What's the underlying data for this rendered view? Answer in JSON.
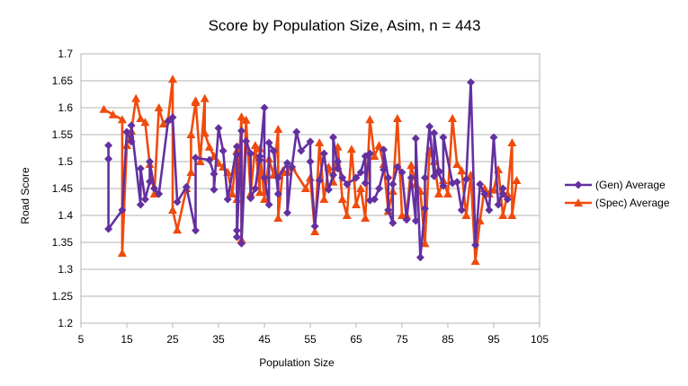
{
  "chart_data": {
    "type": "line",
    "title": "Score by Population Size, Asim, n = 443",
    "xlabel": "Population Size",
    "ylabel": "Road Score",
    "xlim": [
      5,
      105
    ],
    "ylim": [
      1.2,
      1.7
    ],
    "x_ticks": [
      "5",
      "15",
      "25",
      "35",
      "45",
      "55",
      "65",
      "75",
      "85",
      "95",
      "105"
    ],
    "y_ticks": [
      "1.2",
      "1.25",
      "1.3",
      "1.35",
      "1.4",
      "1.45",
      "1.5",
      "1.55",
      "1.6",
      "1.65",
      "1.7"
    ],
    "grid": "horizontal",
    "legend_position": "right",
    "series": [
      {
        "name": "(Gen) Average",
        "color": "#6330a0",
        "marker": "diamond",
        "points": [
          [
            11,
            1.53
          ],
          [
            11,
            1.505
          ],
          [
            11,
            1.375
          ],
          [
            14,
            1.41
          ],
          [
            15,
            1.555
          ],
          [
            16,
            1.537
          ],
          [
            16,
            1.567
          ],
          [
            18,
            1.42
          ],
          [
            18,
            1.487
          ],
          [
            19,
            1.43
          ],
          [
            20,
            1.463
          ],
          [
            20,
            1.5
          ],
          [
            21,
            1.45
          ],
          [
            22,
            1.44
          ],
          [
            24,
            1.575
          ],
          [
            25,
            1.582
          ],
          [
            26,
            1.425
          ],
          [
            28,
            1.453
          ],
          [
            30,
            1.372
          ],
          [
            30,
            1.507
          ],
          [
            33,
            1.503
          ],
          [
            34,
            1.477
          ],
          [
            34,
            1.448
          ],
          [
            35,
            1.562
          ],
          [
            36,
            1.52
          ],
          [
            37,
            1.43
          ],
          [
            39,
            1.528
          ],
          [
            39,
            1.513
          ],
          [
            39,
            1.372
          ],
          [
            39,
            1.36
          ],
          [
            40,
            1.557
          ],
          [
            40,
            1.348
          ],
          [
            41,
            1.538
          ],
          [
            42,
            1.515
          ],
          [
            42,
            1.432
          ],
          [
            43,
            1.45
          ],
          [
            44,
            1.51
          ],
          [
            44,
            1.503
          ],
          [
            45,
            1.6
          ],
          [
            45,
            1.47
          ],
          [
            46,
            1.42
          ],
          [
            46,
            1.535
          ],
          [
            47,
            1.52
          ],
          [
            48,
            1.44
          ],
          [
            48,
            1.47
          ],
          [
            50,
            1.497
          ],
          [
            50,
            1.405
          ],
          [
            51,
            1.49
          ],
          [
            52,
            1.555
          ],
          [
            53,
            1.52
          ],
          [
            55,
            1.537
          ],
          [
            55,
            1.5
          ],
          [
            56,
            1.38
          ],
          [
            57,
            1.465
          ],
          [
            58,
            1.515
          ],
          [
            59,
            1.448
          ],
          [
            60,
            1.475
          ],
          [
            60,
            1.545
          ],
          [
            61,
            1.487
          ],
          [
            61,
            1.5
          ],
          [
            62,
            1.47
          ],
          [
            63,
            1.458
          ],
          [
            65,
            1.47
          ],
          [
            66,
            1.48
          ],
          [
            67,
            1.51
          ],
          [
            67,
            1.46
          ],
          [
            68,
            1.515
          ],
          [
            68,
            1.428
          ],
          [
            69,
            1.43
          ],
          [
            70,
            1.45
          ],
          [
            71,
            1.485
          ],
          [
            71,
            1.522
          ],
          [
            72,
            1.47
          ],
          [
            72,
            1.41
          ],
          [
            73,
            1.386
          ],
          [
            73,
            1.458
          ],
          [
            74,
            1.49
          ],
          [
            75,
            1.48
          ],
          [
            76,
            1.392
          ],
          [
            77,
            1.47
          ],
          [
            78,
            1.39
          ],
          [
            78,
            1.543
          ],
          [
            79,
            1.322
          ],
          [
            80,
            1.413
          ],
          [
            80,
            1.47
          ],
          [
            81,
            1.565
          ],
          [
            82,
            1.473
          ],
          [
            82,
            1.553
          ],
          [
            83,
            1.483
          ],
          [
            83,
            1.48
          ],
          [
            84,
            1.455
          ],
          [
            84,
            1.545
          ],
          [
            86,
            1.46
          ],
          [
            87,
            1.462
          ],
          [
            88,
            1.41
          ],
          [
            89,
            1.467
          ],
          [
            90,
            1.647
          ],
          [
            91,
            1.345
          ],
          [
            92,
            1.458
          ],
          [
            93,
            1.44
          ],
          [
            94,
            1.41
          ],
          [
            95,
            1.545
          ],
          [
            96,
            1.42
          ],
          [
            97,
            1.45
          ],
          [
            97,
            1.44
          ],
          [
            98,
            1.43
          ]
        ]
      },
      {
        "name": "(Spec) Average",
        "color": "#f04b0c",
        "marker": "triangle",
        "points": [
          [
            10,
            1.597
          ],
          [
            12,
            1.587
          ],
          [
            14,
            1.578
          ],
          [
            14,
            1.33
          ],
          [
            15,
            1.53
          ],
          [
            16,
            1.557
          ],
          [
            17,
            1.617
          ],
          [
            18,
            1.58
          ],
          [
            19,
            1.573
          ],
          [
            20,
            1.495
          ],
          [
            21,
            1.44
          ],
          [
            22,
            1.6
          ],
          [
            23,
            1.57
          ],
          [
            24,
            1.578
          ],
          [
            25,
            1.653
          ],
          [
            25,
            1.41
          ],
          [
            26,
            1.373
          ],
          [
            28,
            1.45
          ],
          [
            29,
            1.48
          ],
          [
            29,
            1.55
          ],
          [
            30,
            1.61
          ],
          [
            30,
            1.613
          ],
          [
            31,
            1.5
          ],
          [
            32,
            1.617
          ],
          [
            32,
            1.553
          ],
          [
            33,
            1.527
          ],
          [
            34,
            1.51
          ],
          [
            35,
            1.497
          ],
          [
            36,
            1.49
          ],
          [
            37,
            1.48
          ],
          [
            38,
            1.44
          ],
          [
            39,
            1.52
          ],
          [
            39,
            1.43
          ],
          [
            40,
            1.583
          ],
          [
            40,
            1.355
          ],
          [
            41,
            1.577
          ],
          [
            42,
            1.44
          ],
          [
            43,
            1.53
          ],
          [
            44,
            1.443
          ],
          [
            44,
            1.524
          ],
          [
            45,
            1.43
          ],
          [
            46,
            1.505
          ],
          [
            47,
            1.475
          ],
          [
            48,
            1.56
          ],
          [
            48,
            1.395
          ],
          [
            49,
            1.483
          ],
          [
            50,
            1.48
          ],
          [
            51,
            1.49
          ],
          [
            54,
            1.45
          ],
          [
            55,
            1.47
          ],
          [
            56,
            1.37
          ],
          [
            57,
            1.535
          ],
          [
            58,
            1.43
          ],
          [
            59,
            1.49
          ],
          [
            60,
            1.462
          ],
          [
            61,
            1.527
          ],
          [
            62,
            1.43
          ],
          [
            63,
            1.4
          ],
          [
            64,
            1.523
          ],
          [
            65,
            1.42
          ],
          [
            66,
            1.45
          ],
          [
            67,
            1.395
          ],
          [
            68,
            1.578
          ],
          [
            69,
            1.51
          ],
          [
            70,
            1.53
          ],
          [
            71,
            1.495
          ],
          [
            72,
            1.408
          ],
          [
            73,
            1.445
          ],
          [
            74,
            1.58
          ],
          [
            75,
            1.4
          ],
          [
            76,
            1.4
          ],
          [
            77,
            1.493
          ],
          [
            78,
            1.458
          ],
          [
            79,
            1.445
          ],
          [
            80,
            1.348
          ],
          [
            81,
            1.52
          ],
          [
            82,
            1.5
          ],
          [
            83,
            1.44
          ],
          [
            84,
            1.465
          ],
          [
            85,
            1.44
          ],
          [
            86,
            1.58
          ],
          [
            87,
            1.495
          ],
          [
            88,
            1.483
          ],
          [
            89,
            1.4
          ],
          [
            90,
            1.475
          ],
          [
            91,
            1.315
          ],
          [
            92,
            1.39
          ],
          [
            93,
            1.45
          ],
          [
            94,
            1.44
          ],
          [
            95,
            1.447
          ],
          [
            96,
            1.485
          ],
          [
            97,
            1.4
          ],
          [
            98,
            1.44
          ],
          [
            99,
            1.535
          ],
          [
            99,
            1.4
          ],
          [
            100,
            1.465
          ]
        ]
      }
    ]
  }
}
